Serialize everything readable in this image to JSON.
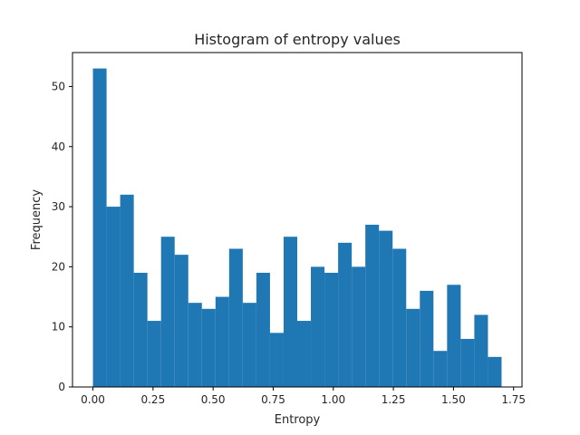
{
  "chart_data": {
    "type": "bar",
    "title": "Histogram of entropy values",
    "xlabel": "Entropy",
    "ylabel": "Frequency",
    "bin_start": 0.0,
    "bin_end": 1.7,
    "counts": [
      53,
      30,
      32,
      19,
      11,
      25,
      22,
      14,
      13,
      15,
      23,
      14,
      19,
      9,
      25,
      11,
      20,
      19,
      24,
      20,
      27,
      26,
      23,
      13,
      16,
      6,
      17,
      8,
      12,
      5
    ],
    "xlim": [
      -0.085,
      1.785
    ],
    "ylim": [
      0,
      55.65
    ],
    "xticks": [
      0.0,
      0.25,
      0.5,
      0.75,
      1.0,
      1.25,
      1.5,
      1.75
    ],
    "xtick_labels": [
      "0.00",
      "0.25",
      "0.50",
      "0.75",
      "1.00",
      "1.25",
      "1.50",
      "1.75"
    ],
    "yticks": [
      0,
      10,
      20,
      30,
      40,
      50
    ],
    "ytick_labels": [
      "0",
      "10",
      "20",
      "30",
      "40",
      "50"
    ],
    "bar_color": "#1f77b4",
    "grid": false,
    "legend": "none"
  }
}
